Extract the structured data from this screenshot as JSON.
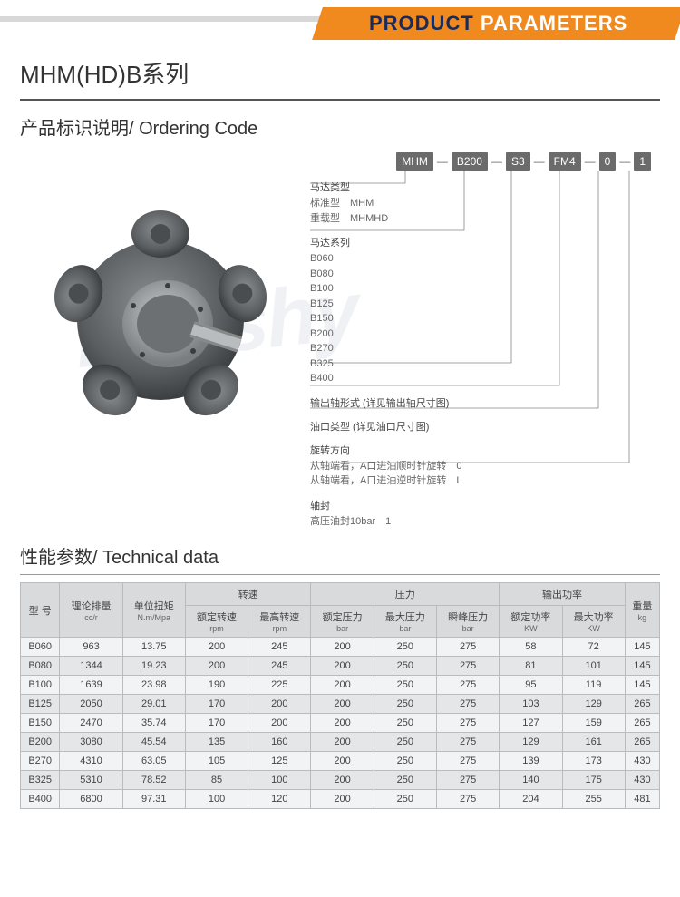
{
  "colors": {
    "orange": "#f08a1f",
    "navy": "#1a2b5b",
    "gray_bg": "#d8dadb",
    "row_bg": "#f2f3f4",
    "row_alt": "#e4e6e7",
    "border": "#bbbbbb"
  },
  "banner": {
    "word1": "PRODUCT",
    "word2": "PARAMETERS"
  },
  "series_title": "MHM(HD)B系列",
  "ordering": {
    "title": "产品标识说明/ Ordering Code",
    "codes": [
      "MHM",
      "B200",
      "S3",
      "FM4",
      "0",
      "1"
    ],
    "groups": [
      {
        "heading": "马达类型",
        "lines": [
          "标准型　MHM",
          "重载型　MHMHD"
        ]
      },
      {
        "heading": "马达系列",
        "lines": [
          "B060",
          "B080",
          "B100",
          "B125",
          "B150",
          "B200",
          "B270",
          "B325",
          "B400"
        ]
      },
      {
        "heading": "输出轴形式 (详见输出轴尺寸图)",
        "lines": []
      },
      {
        "heading": "油口类型 (详见油口尺寸图)",
        "lines": []
      },
      {
        "heading": "旋转方向",
        "lines": [
          "从轴端看，A口进油顺时针旋转　0",
          "从轴端看，A口进油逆时针旋转　L"
        ]
      },
      {
        "heading": "轴封",
        "lines": [
          "高压油封10bar　1"
        ]
      }
    ]
  },
  "tech": {
    "title": "性能参数/ Technical data",
    "header_groups": [
      {
        "label": "型 号",
        "sub": "",
        "span": 1,
        "rowspan": 2
      },
      {
        "label": "理论排量",
        "sub": "cc/r",
        "span": 1,
        "rowspan": 2
      },
      {
        "label": "单位扭矩",
        "sub": "N.m/Mpa",
        "span": 1,
        "rowspan": 2
      },
      {
        "label": "转速",
        "span": 2
      },
      {
        "label": "压力",
        "span": 3
      },
      {
        "label": "输出功率",
        "span": 2
      },
      {
        "label": "重量",
        "sub": "kg",
        "span": 1,
        "rowspan": 2
      }
    ],
    "sub_headers": [
      {
        "label": "额定转速",
        "sub": "rpm"
      },
      {
        "label": "最高转速",
        "sub": "rpm"
      },
      {
        "label": "额定压力",
        "sub": "bar"
      },
      {
        "label": "最大压力",
        "sub": "bar"
      },
      {
        "label": "瞬峰压力",
        "sub": "bar"
      },
      {
        "label": "额定功率",
        "sub": "KW"
      },
      {
        "label": "最大功率",
        "sub": "KW"
      }
    ],
    "rows": [
      [
        "B060",
        "963",
        "13.75",
        "200",
        "245",
        "200",
        "250",
        "275",
        "58",
        "72",
        "145"
      ],
      [
        "B080",
        "1344",
        "19.23",
        "200",
        "245",
        "200",
        "250",
        "275",
        "81",
        "101",
        "145"
      ],
      [
        "B100",
        "1639",
        "23.98",
        "190",
        "225",
        "200",
        "250",
        "275",
        "95",
        "119",
        "145"
      ],
      [
        "B125",
        "2050",
        "29.01",
        "170",
        "200",
        "200",
        "250",
        "275",
        "103",
        "129",
        "265"
      ],
      [
        "B150",
        "2470",
        "35.74",
        "170",
        "200",
        "200",
        "250",
        "275",
        "127",
        "159",
        "265"
      ],
      [
        "B200",
        "3080",
        "45.54",
        "135",
        "160",
        "200",
        "250",
        "275",
        "129",
        "161",
        "265"
      ],
      [
        "B270",
        "4310",
        "63.05",
        "105",
        "125",
        "200",
        "250",
        "275",
        "139",
        "173",
        "430"
      ],
      [
        "B325",
        "5310",
        "78.52",
        "85",
        "100",
        "200",
        "250",
        "275",
        "140",
        "175",
        "430"
      ],
      [
        "B400",
        "6800",
        "97.31",
        "100",
        "120",
        "200",
        "250",
        "275",
        "204",
        "255",
        "481"
      ]
    ]
  },
  "watermark": "Hanshy"
}
